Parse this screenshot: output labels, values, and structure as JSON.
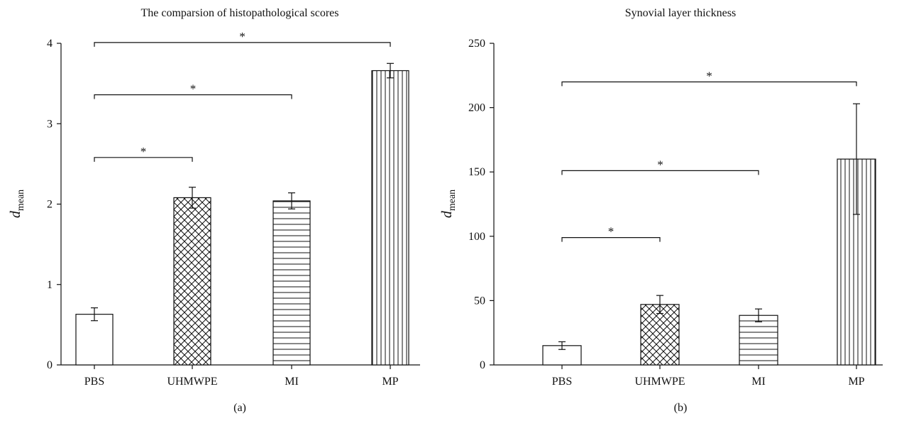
{
  "chart_data": [
    {
      "type": "bar",
      "title": "The comparsion of histopathological scores",
      "subplot_label": "(a)",
      "ylabel": "d",
      "ylabel_subscript": "mean",
      "categories": [
        "PBS",
        "UHMWPE",
        "MI",
        "MP"
      ],
      "values": [
        0.63,
        2.08,
        2.04,
        3.66
      ],
      "errors": [
        0.08,
        0.13,
        0.1,
        0.09
      ],
      "patterns": [
        "none",
        "crosshatch",
        "horizontal",
        "vertical"
      ],
      "ylim": [
        0,
        4
      ],
      "yticks": [
        0,
        1,
        2,
        3,
        4
      ],
      "significance": [
        {
          "from": "PBS",
          "to": "UHMWPE",
          "y": 2.58,
          "label": "*"
        },
        {
          "from": "PBS",
          "to": "MI",
          "y": 3.36,
          "label": "*"
        },
        {
          "from": "PBS",
          "to": "MP",
          "y": 4.01,
          "label": "*"
        }
      ]
    },
    {
      "type": "bar",
      "title": "Synovial layer thickness",
      "subplot_label": "(b)",
      "ylabel": "d",
      "ylabel_subscript": "mean",
      "categories": [
        "PBS",
        "UHMWPE",
        "MI",
        "MP"
      ],
      "values": [
        15,
        47,
        38.5,
        160
      ],
      "errors": [
        3,
        7,
        5,
        43
      ],
      "patterns": [
        "none",
        "crosshatch",
        "horizontal",
        "vertical"
      ],
      "ylim": [
        0,
        250
      ],
      "yticks": [
        0,
        50,
        100,
        150,
        200,
        250
      ],
      "significance": [
        {
          "from": "PBS",
          "to": "UHMWPE",
          "y": 99,
          "label": "*"
        },
        {
          "from": "PBS",
          "to": "MI",
          "y": 151,
          "label": "*"
        },
        {
          "from": "PBS",
          "to": "MP",
          "y": 220,
          "label": "*"
        }
      ]
    }
  ]
}
